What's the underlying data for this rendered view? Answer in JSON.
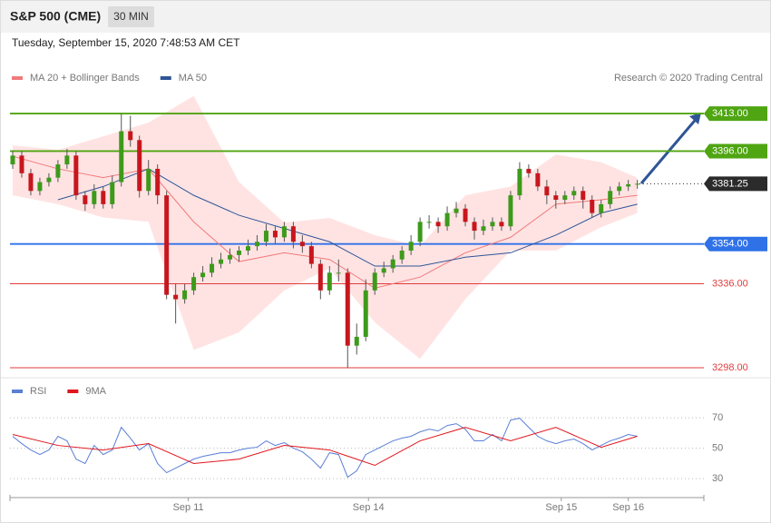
{
  "header": {
    "title": "S&P 500 (CME)",
    "interval": "30 MIN",
    "timestamp": "Tuesday, September 15, 2020 7:48:53 AM CET",
    "credit": "Research © 2020 Trading Central"
  },
  "chart_data": [
    {
      "type": "candlestick",
      "x": [
        0,
        1,
        2,
        3,
        4,
        5,
        6,
        7,
        8,
        9,
        10,
        11,
        12,
        13,
        14,
        15,
        16,
        17,
        18,
        19,
        20,
        21,
        22,
        23,
        24,
        25,
        26,
        27,
        28,
        29,
        30,
        31,
        32,
        33,
        34,
        35,
        36,
        37,
        38,
        39,
        40,
        41,
        42,
        43,
        44,
        45,
        46,
        47,
        48,
        49,
        50,
        51,
        52,
        53,
        54,
        55,
        56,
        57,
        58,
        59,
        60,
        61,
        62,
        63,
        64,
        65,
        66,
        67,
        68,
        69
      ],
      "open": [
        3390,
        3394,
        3386,
        3378,
        3382,
        3384,
        3390,
        3394,
        3376,
        3372,
        3378,
        3372,
        3382,
        3405,
        3401,
        3378,
        3388,
        3376,
        3331,
        3329,
        3333,
        3339,
        3341,
        3345,
        3347,
        3349,
        3351,
        3353,
        3355,
        3360,
        3357,
        3362,
        3355,
        3353,
        3345,
        3333,
        3341,
        3341,
        3308,
        3312,
        3333,
        3341,
        3343,
        3347,
        3351,
        3355,
        3364,
        3364,
        3362,
        3368,
        3370,
        3364,
        3360,
        3362,
        3364,
        3362,
        3376,
        3388,
        3386,
        3380,
        3376,
        3374,
        3376,
        3378,
        3374,
        3368,
        3372,
        3378,
        3380,
        3381
      ],
      "high": [
        3396,
        3396,
        3388,
        3384,
        3386,
        3392,
        3397,
        3396,
        3378,
        3381,
        3380,
        3385,
        3413,
        3412,
        3403,
        3392,
        3390,
        3378,
        3336,
        3336,
        3341,
        3344,
        3348,
        3350,
        3352,
        3353,
        3356,
        3358,
        3363,
        3362,
        3364,
        3364,
        3358,
        3355,
        3347,
        3344,
        3347,
        3343,
        3318,
        3338,
        3343,
        3346,
        3349,
        3353,
        3358,
        3366,
        3367,
        3366,
        3371,
        3373,
        3372,
        3366,
        3365,
        3366,
        3366,
        3378,
        3391,
        3390,
        3388,
        3383,
        3378,
        3378,
        3380,
        3380,
        3376,
        3374,
        3380,
        3382,
        3383,
        3383
      ],
      "low": [
        3388,
        3384,
        3376,
        3376,
        3380,
        3382,
        3388,
        3374,
        3369,
        3370,
        3370,
        3370,
        3380,
        3398,
        3375,
        3376,
        3372,
        3329,
        3318,
        3327,
        3331,
        3337,
        3339,
        3343,
        3345,
        3346,
        3349,
        3351,
        3353,
        3354,
        3355,
        3352,
        3350,
        3343,
        3329,
        3331,
        3337,
        3298,
        3304,
        3310,
        3331,
        3339,
        3341,
        3345,
        3349,
        3353,
        3361,
        3359,
        3360,
        3366,
        3362,
        3356,
        3358,
        3360,
        3360,
        3360,
        3374,
        3384,
        3378,
        3372,
        3370,
        3372,
        3374,
        3370,
        3366,
        3366,
        3370,
        3376,
        3378,
        3379
      ],
      "close": [
        3394,
        3386,
        3378,
        3382,
        3384,
        3390,
        3394,
        3376,
        3372,
        3378,
        3372,
        3382,
        3405,
        3401,
        3378,
        3388,
        3376,
        3331,
        3329,
        3333,
        3339,
        3341,
        3345,
        3347,
        3349,
        3351,
        3353,
        3355,
        3360,
        3357,
        3362,
        3355,
        3353,
        3345,
        3333,
        3341,
        3341,
        3308,
        3312,
        3333,
        3341,
        3343,
        3347,
        3351,
        3355,
        3364,
        3364,
        3362,
        3368,
        3370,
        3364,
        3360,
        3362,
        3364,
        3362,
        3376,
        3388,
        3386,
        3380,
        3376,
        3374,
        3376,
        3378,
        3374,
        3368,
        3372,
        3378,
        3380,
        3381,
        3381.25
      ],
      "up_color": "#3d9a1b",
      "down_color": "#c8161d",
      "xlim": [
        -0.3,
        76.35
      ],
      "ylim": [
        3293.9,
        3423.3
      ],
      "bands": {
        "color": "#ffd9d9",
        "x": [
          0,
          5,
          10,
          15,
          20,
          25,
          30,
          35,
          40,
          45,
          50,
          55,
          60,
          65,
          69
        ],
        "upper": [
          3398.6,
          3396.6,
          3402.7,
          3408.9,
          3421,
          3382,
          3363.7,
          3365.8,
          3358,
          3353,
          3376,
          3380,
          3394.5,
          3391,
          3384
        ],
        "lower": [
          3376,
          3372,
          3366,
          3364,
          3306,
          3314,
          3333,
          3343,
          3318.5,
          3302,
          3329,
          3351,
          3351,
          3361.6,
          3368
        ]
      },
      "overlays": [
        {
          "name": "MA 20 + Bollinger Bands",
          "color": "#f07a7a",
          "x": [
            0,
            5,
            10,
            15,
            20,
            25,
            30,
            35,
            40,
            45,
            50,
            55,
            60,
            65,
            69
          ],
          "values": [
            3393.7,
            3388,
            3384,
            3388,
            3364,
            3346,
            3350,
            3347,
            3334,
            3339,
            3350,
            3357,
            3372,
            3374,
            3376
          ]
        },
        {
          "name": "MA 50",
          "color": "#2f5597",
          "x": [
            5,
            10,
            15,
            20,
            25,
            30,
            35,
            40,
            45,
            50,
            55,
            60,
            65,
            69
          ],
          "values": [
            3374,
            3380,
            3388,
            3376,
            3367,
            3361,
            3355,
            3344,
            3344,
            3348,
            3350,
            3358,
            3368,
            3372
          ]
        }
      ],
      "levels": [
        {
          "value": 3413,
          "label": "3413.00",
          "color": "#4fa512",
          "tag": true,
          "line": "solid"
        },
        {
          "value": 3396,
          "label": "3396.00",
          "color": "#4fa512",
          "tag": true,
          "line": "solid"
        },
        {
          "value": 3381.25,
          "label": "3381.25",
          "color": "#2b2b2b",
          "tag": true,
          "line": "dotted"
        },
        {
          "value": 3354,
          "label": "3354.00",
          "color": "#2f72e8",
          "tag": true,
          "line": "solid"
        },
        {
          "value": 3336,
          "label": "3336.00",
          "color": "#e03c3c",
          "tag": false,
          "line": "solid"
        },
        {
          "value": 3298,
          "label": "3298.00",
          "color": "#e03c3c",
          "tag": false,
          "line": "solid"
        }
      ]
    },
    {
      "type": "line",
      "xlim": [
        -0.3,
        76.35
      ],
      "ylim": [
        19.3,
        79
      ],
      "yticks": [
        30,
        50,
        70
      ],
      "grid": true,
      "xticks": [
        {
          "value": 19.4,
          "label": "Sep 11"
        },
        {
          "value": 39.3,
          "label": "Sep 14"
        },
        {
          "value": 60.6,
          "label": "Sep 15"
        },
        {
          "value": 68,
          "label": "Sep 16"
        }
      ],
      "series": [
        {
          "name": "RSI",
          "color": "#5b7fd6",
          "x": [
            0,
            1,
            2,
            3,
            4,
            5,
            6,
            7,
            8,
            9,
            10,
            11,
            12,
            13,
            14,
            15,
            16,
            17,
            18,
            19,
            20,
            21,
            22,
            23,
            24,
            25,
            26,
            27,
            28,
            29,
            30,
            31,
            32,
            33,
            34,
            35,
            36,
            37,
            38,
            39,
            40,
            41,
            42,
            43,
            44,
            45,
            46,
            47,
            48,
            49,
            50,
            51,
            52,
            53,
            54,
            55,
            56,
            57,
            58,
            59,
            60,
            61,
            62,
            63,
            64,
            65,
            66,
            67,
            68,
            69
          ],
          "values": [
            57.8,
            53,
            48.8,
            45.8,
            48.8,
            57.8,
            54.8,
            42.8,
            39.9,
            51.8,
            45.8,
            48.8,
            63.7,
            56.6,
            48.8,
            53,
            39.9,
            33.9,
            36.9,
            39.9,
            42.8,
            44.6,
            45.8,
            47,
            47,
            48.8,
            50,
            50.6,
            54.8,
            51.8,
            53.6,
            50,
            47.6,
            42.8,
            36.9,
            47,
            45.8,
            30.9,
            35.1,
            45.8,
            48.8,
            51.8,
            54.8,
            56.6,
            57.8,
            60.7,
            62.5,
            61.3,
            64.9,
            66.1,
            62.5,
            54.8,
            54.8,
            59,
            54.8,
            68.5,
            69.7,
            63.7,
            57.8,
            54.8,
            53,
            54.8,
            56,
            53,
            48.8,
            51.8,
            54.8,
            56.6,
            59,
            57.8
          ]
        },
        {
          "name": "9MA",
          "color": "#e0161d",
          "x": [
            0,
            5,
            10,
            15,
            20,
            25,
            30,
            35,
            40,
            45,
            50,
            55,
            60,
            65,
            69
          ],
          "values": [
            59,
            51.8,
            48.8,
            53,
            39.9,
            42.8,
            51.8,
            48.8,
            38.7,
            54.8,
            63.7,
            54.8,
            63.7,
            50.6,
            57.8
          ]
        }
      ]
    }
  ]
}
